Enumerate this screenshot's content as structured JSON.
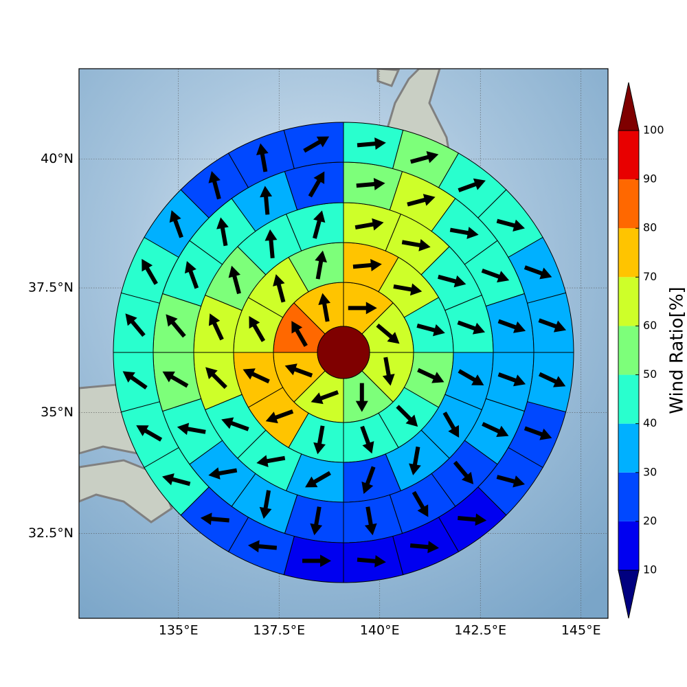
{
  "chart_data": {
    "type": "polar-sector-map",
    "projection": "mercator",
    "xlim": [
      132.53,
      145.67
    ],
    "ylim": [
      30.7,
      41.7
    ],
    "xticks": [
      {
        "value": 135,
        "label": "135°E"
      },
      {
        "value": 137.5,
        "label": "137.5°E"
      },
      {
        "value": 140,
        "label": "140°E"
      },
      {
        "value": 142.5,
        "label": "142.5°E"
      },
      {
        "value": 145,
        "label": "145°E"
      }
    ],
    "yticks": [
      {
        "value": 32.5,
        "label": "32.5°N"
      },
      {
        "value": 35,
        "label": "35°N"
      },
      {
        "value": 37.5,
        "label": "37.5°N"
      },
      {
        "value": 40,
        "label": "40°N"
      }
    ],
    "grid": true,
    "center_value": 105,
    "rings": [
      {
        "values": [
          75,
          65,
          65,
          55,
          65,
          75,
          85,
          75
        ],
        "wind_dir": [
          90,
          130,
          170,
          180,
          250,
          290,
          330,
          350
        ]
      },
      {
        "values": [
          75,
          65,
          45,
          55,
          45,
          45,
          45,
          75,
          75,
          65,
          65,
          55
        ],
        "wind_dir": [
          85,
          100,
          105,
          115,
          135,
          160,
          190,
          250,
          295,
          330,
          345,
          10
        ]
      },
      {
        "values": [
          65,
          65,
          45,
          45,
          35,
          35,
          35,
          25,
          35,
          45,
          45,
          65,
          65,
          55,
          45,
          45
        ],
        "wind_dir": [
          80,
          100,
          105,
          110,
          120,
          150,
          190,
          200,
          240,
          260,
          290,
          315,
          335,
          345,
          355,
          15
        ]
      },
      {
        "values": [
          55,
          65,
          45,
          45,
          35,
          35,
          35,
          25,
          25,
          25,
          25,
          35,
          35,
          45,
          55,
          55,
          45,
          45,
          35,
          25
        ],
        "wind_dir": [
          85,
          75,
          100,
          110,
          110,
          110,
          115,
          140,
          150,
          170,
          190,
          190,
          260,
          280,
          300,
          320,
          340,
          350,
          355,
          30
        ]
      },
      {
        "values": [
          45,
          55,
          45,
          45,
          35,
          35,
          35,
          25,
          25,
          15,
          15,
          15,
          15,
          25,
          25,
          45,
          45,
          45,
          45,
          45,
          35,
          25,
          25,
          25
        ],
        "wind_dir": [
          85,
          75,
          70,
          105,
          110,
          110,
          115,
          110,
          105,
          95,
          95,
          95,
          90,
          275,
          275,
          285,
          300,
          305,
          320,
          330,
          340,
          345,
          350,
          60
        ]
      }
    ],
    "colorbar": {
      "label": "Wind Ratio[%]",
      "levels": [
        10,
        20,
        30,
        40,
        50,
        60,
        70,
        80,
        90,
        100
      ],
      "colors": [
        "#000080",
        "#0000f0",
        "#0048ff",
        "#00b0ff",
        "#29ffce",
        "#7dff7a",
        "#ceff29",
        "#ffc400",
        "#ff6800",
        "#e80000",
        "#7f0000"
      ]
    }
  }
}
